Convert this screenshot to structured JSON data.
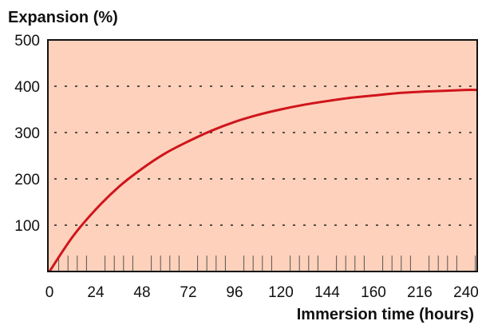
{
  "chart_data": {
    "type": "line",
    "ylabel": "Expansion (%)",
    "xlabel": "Immersion time (hours)",
    "x_tick_labels": [
      "0",
      "24",
      "48",
      "72",
      "96",
      "120",
      "144",
      "160",
      "216",
      "240"
    ],
    "y_ticks": [
      100,
      200,
      300,
      400,
      500
    ],
    "ylim": [
      0,
      500
    ],
    "grid": "dashed horizontal at 100, 200, 300, 400",
    "colors": {
      "plot_bg": "#fdd1bb",
      "line": "#d0141c",
      "frame": "#111111"
    },
    "series": [
      {
        "x_tick_index": [
          0,
          0.5,
          1,
          1.5,
          2,
          2.5,
          3,
          3.5,
          4,
          4.5,
          5,
          5.5,
          6,
          6.5,
          7,
          7.5,
          8,
          8.5,
          9,
          9.25
        ],
        "values": [
          0,
          75,
          134,
          183,
          222,
          255,
          281,
          304,
          323,
          338,
          350,
          360,
          368,
          375,
          380,
          385,
          388,
          390,
          392,
          392
        ]
      }
    ]
  }
}
